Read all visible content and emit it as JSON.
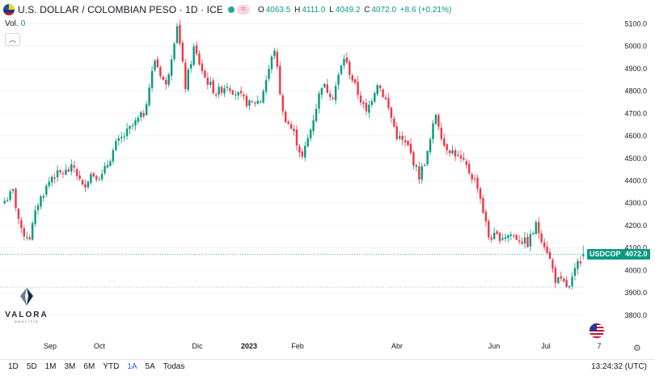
{
  "header": {
    "title": "U.S. DOLLAR / COLOMBIAN PESO · 1D · ICE",
    "ohlc": {
      "o_label": "O",
      "o": "4063.5",
      "h_label": "H",
      "h": "4111.0",
      "l_label": "L",
      "l": "4049.2",
      "c_label": "C",
      "c": "4072.0",
      "change": "+8.6 (+0.21%)"
    },
    "eq_icon": "≈"
  },
  "volume": {
    "label": "Vol.",
    "value": "0"
  },
  "logo": {
    "name": "VALORA",
    "sub": "ANALITIK"
  },
  "price_tag": {
    "symbol": "USDCOP",
    "price": "4072.0"
  },
  "bottom": {
    "ranges": [
      "1D",
      "5D",
      "1M",
      "3M",
      "6M",
      "YTD",
      "1A",
      "5A",
      "Todas"
    ],
    "active_range": "1A",
    "clock": "13:24:32 (UTC)"
  },
  "colors": {
    "up": "#089981",
    "down": "#f23645",
    "grid": "#f0f3fa",
    "axis_text": "#131722"
  },
  "chart_data": {
    "type": "candlestick",
    "symbol": "USDCOP",
    "interval": "1D",
    "ylim": [
      3720,
      5170
    ],
    "y_ticks": [
      3800,
      3900,
      4000,
      4100,
      4200,
      4300,
      4400,
      4500,
      4600,
      4700,
      4800,
      4900,
      5000,
      5100
    ],
    "x_labels": [
      "Sep",
      "Oct",
      "Dic",
      "2023",
      "Feb",
      "Abr",
      "Jun",
      "Jul",
      "7"
    ],
    "last_price": 4072.0,
    "anchors": [
      {
        "i": 0,
        "v": 4310
      },
      {
        "i": 3,
        "v": 4350
      },
      {
        "i": 6,
        "v": 4170
      },
      {
        "i": 9,
        "v": 4150
      },
      {
        "i": 12,
        "v": 4300
      },
      {
        "i": 17,
        "v": 4420
      },
      {
        "i": 22,
        "v": 4440
      },
      {
        "i": 25,
        "v": 4460
      },
      {
        "i": 28,
        "v": 4370
      },
      {
        "i": 31,
        "v": 4430
      },
      {
        "i": 35,
        "v": 4420
      },
      {
        "i": 40,
        "v": 4560
      },
      {
        "i": 45,
        "v": 4630
      },
      {
        "i": 50,
        "v": 4700
      },
      {
        "i": 54,
        "v": 4940
      },
      {
        "i": 58,
        "v": 4820
      },
      {
        "i": 62,
        "v": 5100
      },
      {
        "i": 65,
        "v": 4820
      },
      {
        "i": 68,
        "v": 4990
      },
      {
        "i": 72,
        "v": 4860
      },
      {
        "i": 76,
        "v": 4790
      },
      {
        "i": 80,
        "v": 4830
      },
      {
        "i": 84,
        "v": 4780
      },
      {
        "i": 88,
        "v": 4740
      },
      {
        "i": 92,
        "v": 4760
      },
      {
        "i": 97,
        "v": 4990
      },
      {
        "i": 100,
        "v": 4700
      },
      {
        "i": 104,
        "v": 4610
      },
      {
        "i": 107,
        "v": 4500
      },
      {
        "i": 110,
        "v": 4630
      },
      {
        "i": 114,
        "v": 4830
      },
      {
        "i": 118,
        "v": 4780
      },
      {
        "i": 122,
        "v": 4950
      },
      {
        "i": 126,
        "v": 4820
      },
      {
        "i": 130,
        "v": 4700
      },
      {
        "i": 134,
        "v": 4840
      },
      {
        "i": 137,
        "v": 4760
      },
      {
        "i": 141,
        "v": 4600
      },
      {
        "i": 145,
        "v": 4550
      },
      {
        "i": 149,
        "v": 4420
      },
      {
        "i": 152,
        "v": 4520
      },
      {
        "i": 155,
        "v": 4700
      },
      {
        "i": 158,
        "v": 4560
      },
      {
        "i": 162,
        "v": 4520
      },
      {
        "i": 166,
        "v": 4460
      },
      {
        "i": 170,
        "v": 4380
      },
      {
        "i": 174,
        "v": 4150
      },
      {
        "i": 178,
        "v": 4150
      },
      {
        "i": 182,
        "v": 4160
      },
      {
        "i": 185,
        "v": 4140
      },
      {
        "i": 188,
        "v": 4120
      },
      {
        "i": 191,
        "v": 4200
      },
      {
        "i": 195,
        "v": 4090
      },
      {
        "i": 198,
        "v": 3960
      },
      {
        "i": 201,
        "v": 3940
      },
      {
        "i": 203,
        "v": 3920
      },
      {
        "i": 206,
        "v": 4030
      },
      {
        "i": 208,
        "v": 4072
      }
    ]
  }
}
